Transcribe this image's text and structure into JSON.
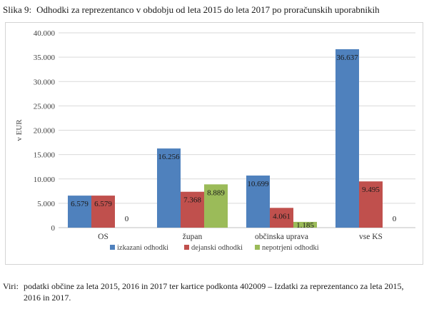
{
  "caption": {
    "label": "Slika 9:",
    "text": "Odhodki za reprezentanco v obdobju od leta 2015 do leta 2017 po proračunskih uporabnikih"
  },
  "chart_data": {
    "type": "bar",
    "title": "",
    "xlabel": "",
    "ylabel": "v EUR",
    "ylim": [
      0,
      40000
    ],
    "yticks": [
      0,
      5000,
      10000,
      15000,
      20000,
      25000,
      30000,
      35000,
      40000
    ],
    "ytick_labels": [
      "0",
      "5.000",
      "10.000",
      "15.000",
      "20.000",
      "25.000",
      "30.000",
      "35.000",
      "40.000"
    ],
    "grid": true,
    "legend_position": "bottom",
    "categories": [
      "OS",
      "župan",
      "občinska uprava",
      "vse KS"
    ],
    "series": [
      {
        "name": "izkazani odhodki",
        "color": "#4f81bd",
        "values": [
          6579,
          16256,
          10699,
          36637
        ],
        "labels": [
          "6.579",
          "16.256",
          "10.699",
          "36.637"
        ]
      },
      {
        "name": "dejanski odhodki",
        "color": "#c0504d",
        "values": [
          6579,
          7368,
          4061,
          9495
        ],
        "labels": [
          "6.579",
          "7.368",
          "4.061",
          "9.495"
        ]
      },
      {
        "name": "nepotrjeni odhodki",
        "color": "#9bbb59",
        "values": [
          0,
          8889,
          1185,
          0
        ],
        "labels": [
          "0",
          "8.889",
          "1.185",
          "0"
        ]
      }
    ]
  },
  "source": {
    "label": "Viri:",
    "line1": "podatki občine za leta 2015, 2016 in 2017 ter kartice podkonta 402009 – Izdatki za reprezentanco za leta 2015,",
    "line2": "2016 in 2017."
  }
}
